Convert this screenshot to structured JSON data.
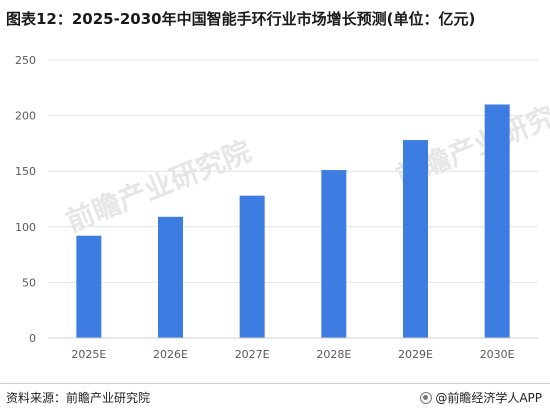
{
  "title": "图表12：2025-2030年中国智能手环行业市场增长预测(单位：亿元)",
  "source": "资料来源：前瞻产业研究院",
  "brand": "@前瞻经济学人APP",
  "watermark": "前瞻产业研究院",
  "colors": {
    "bar": "#3d7de1",
    "grid": "#e4e4e4",
    "axis": "#cccccc",
    "tick": "#595959"
  },
  "chart_data": {
    "type": "bar",
    "title": "图表12：2025-2030年中国智能手环行业市场增长预测(单位：亿元)",
    "categories": [
      "2025E",
      "2026E",
      "2027E",
      "2028E",
      "2029E",
      "2030E"
    ],
    "values": [
      92,
      109,
      128,
      151,
      178,
      210
    ],
    "ylim": [
      0,
      250
    ],
    "yticks": [
      0,
      50,
      100,
      150,
      200,
      250
    ],
    "grid": true,
    "xlabel": "",
    "ylabel": ""
  }
}
